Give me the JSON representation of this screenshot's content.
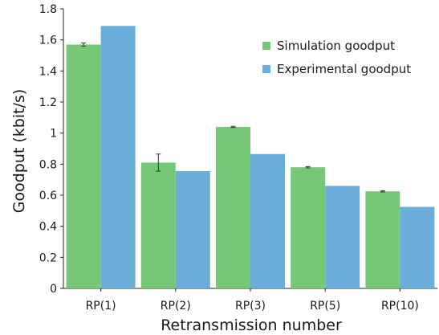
{
  "chart_data": {
    "type": "bar",
    "categories": [
      "RP(1)",
      "RP(2)",
      "RP(3)",
      "RP(5)",
      "RP(10)"
    ],
    "series": [
      {
        "name": "Simulation goodput",
        "values": [
          1.57,
          0.81,
          1.04,
          0.78,
          0.625
        ],
        "error": [
          0.01,
          0.055,
          0.004,
          0.004,
          0.004
        ],
        "color": "#76c776"
      },
      {
        "name": "Experimental goodput",
        "values": [
          1.69,
          0.755,
          0.865,
          0.66,
          0.525
        ],
        "color": "#6aaed9"
      }
    ],
    "xlabel": "Retransmission number",
    "ylabel": "Goodput (kbit/s)",
    "ylim": [
      0,
      1.8
    ],
    "yticks": [
      "0",
      "0.2",
      "0.4",
      "0.6",
      "0.8",
      "1",
      "1.2",
      "1.4",
      "1.6",
      "1.8"
    ],
    "grid": false,
    "legend_position": "top-right"
  }
}
